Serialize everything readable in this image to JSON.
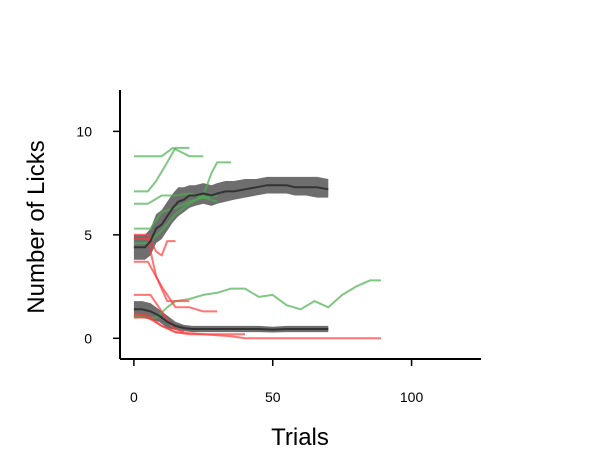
{
  "chart_data": {
    "type": "line",
    "title": "",
    "xlabel": "Trials",
    "ylabel": "Number of Licks",
    "xlim": [
      -5,
      125
    ],
    "ylim": [
      -1,
      12
    ],
    "xticks": [
      0,
      50,
      100
    ],
    "yticks": [
      0,
      5,
      10
    ],
    "grid": false,
    "colors": {
      "green": "#4caf50",
      "red": "#ff3b3b",
      "mean": "#333333",
      "band": "#555555"
    },
    "series": [
      {
        "group": "green",
        "x": [
          0,
          5,
          10,
          14,
          20,
          25
        ],
        "y": [
          8.8,
          8.8,
          8.8,
          9.2,
          8.8,
          8.8
        ]
      },
      {
        "group": "green",
        "x": [
          0,
          5,
          8,
          12,
          15,
          20
        ],
        "y": [
          7.1,
          7.1,
          7.6,
          8.5,
          9.2,
          9.2
        ]
      },
      {
        "group": "green",
        "x": [
          0,
          6,
          10,
          15,
          20,
          25,
          30
        ],
        "y": [
          5.3,
          5.3,
          6.1,
          6.3,
          6.6,
          6.8,
          6.6
        ]
      },
      {
        "group": "green",
        "x": [
          0,
          5,
          10,
          15,
          20,
          25,
          28,
          30,
          35
        ],
        "y": [
          4.6,
          4.6,
          5.2,
          6.0,
          6.5,
          6.9,
          8.0,
          8.5,
          8.5
        ]
      },
      {
        "group": "green",
        "x": [
          0,
          5,
          10,
          15,
          20,
          25,
          30
        ],
        "y": [
          6.5,
          6.5,
          6.9,
          6.9,
          7.0,
          6.8,
          6.9
        ]
      },
      {
        "group": "green",
        "x": [
          0,
          5,
          8,
          12,
          15,
          20,
          25,
          30,
          35,
          40,
          45,
          50,
          55,
          60,
          65,
          70,
          75,
          80,
          85,
          89
        ],
        "y": [
          1.1,
          1.0,
          1.0,
          1.5,
          1.8,
          1.9,
          2.1,
          2.2,
          2.4,
          2.4,
          2.0,
          2.1,
          1.6,
          1.4,
          1.8,
          1.5,
          2.1,
          2.5,
          2.8,
          2.8
        ]
      },
      {
        "group": "red",
        "x": [
          0,
          5,
          8,
          10,
          12,
          15
        ],
        "y": [
          5.0,
          5.0,
          4.2,
          4.0,
          4.7,
          4.7
        ]
      },
      {
        "group": "red",
        "x": [
          0,
          5,
          8,
          12,
          16,
          20
        ],
        "y": [
          4.8,
          4.8,
          3.0,
          1.8,
          1.8,
          1.8
        ]
      },
      {
        "group": "red",
        "x": [
          0,
          5,
          10,
          15,
          20,
          25,
          30
        ],
        "y": [
          3.7,
          3.7,
          2.5,
          1.5,
          1.5,
          1.3,
          1.3
        ]
      },
      {
        "group": "red",
        "x": [
          0,
          6,
          10,
          14,
          18
        ],
        "y": [
          2.1,
          2.1,
          1.3,
          0.5,
          0.3
        ]
      },
      {
        "group": "red",
        "x": [
          0,
          5,
          10,
          15,
          20,
          30,
          40
        ],
        "y": [
          1.2,
          1.1,
          0.6,
          0.3,
          0.2,
          0.2,
          0.2
        ]
      },
      {
        "group": "red",
        "x": [
          0,
          5,
          10,
          15,
          25,
          35,
          40,
          50,
          60,
          70,
          80,
          89
        ],
        "y": [
          1.0,
          1.0,
          0.6,
          0.3,
          0.2,
          0.1,
          0.0,
          0.0,
          0.0,
          0.0,
          0.0,
          0.0
        ]
      }
    ],
    "means": [
      {
        "x": [
          0,
          2,
          4,
          6,
          8,
          10,
          12,
          14,
          16,
          18,
          20,
          22,
          25,
          28,
          30,
          33,
          36,
          40,
          44,
          48,
          52,
          55,
          58,
          62,
          66,
          70
        ],
        "y": [
          4.4,
          4.4,
          4.4,
          4.7,
          5.3,
          5.5,
          5.9,
          6.3,
          6.6,
          6.7,
          6.9,
          6.9,
          7.0,
          6.9,
          7.0,
          7.1,
          7.1,
          7.2,
          7.3,
          7.4,
          7.4,
          7.4,
          7.3,
          7.3,
          7.3,
          7.2
        ],
        "lower": [
          3.8,
          3.8,
          3.8,
          4.0,
          4.6,
          4.8,
          5.2,
          5.6,
          5.9,
          6.1,
          6.3,
          6.4,
          6.5,
          6.4,
          6.5,
          6.6,
          6.7,
          6.8,
          6.9,
          7.0,
          7.0,
          7.0,
          6.9,
          6.9,
          6.8,
          6.8
        ],
        "upper": [
          5.0,
          5.0,
          5.0,
          5.3,
          6.0,
          6.2,
          6.6,
          7.0,
          7.3,
          7.3,
          7.4,
          7.4,
          7.5,
          7.4,
          7.5,
          7.6,
          7.6,
          7.7,
          7.7,
          7.8,
          7.8,
          7.8,
          7.8,
          7.8,
          7.8,
          7.7
        ]
      },
      {
        "x": [
          0,
          3,
          6,
          9,
          12,
          15,
          18,
          21,
          25,
          30,
          35,
          40,
          45,
          50,
          55,
          60,
          65,
          70
        ],
        "y": [
          1.4,
          1.4,
          1.3,
          1.1,
          0.8,
          0.6,
          0.5,
          0.45,
          0.45,
          0.45,
          0.45,
          0.45,
          0.45,
          0.42,
          0.45,
          0.45,
          0.45,
          0.45
        ],
        "lower": [
          1.0,
          1.0,
          0.9,
          0.8,
          0.5,
          0.4,
          0.35,
          0.3,
          0.3,
          0.3,
          0.3,
          0.3,
          0.3,
          0.28,
          0.3,
          0.3,
          0.3,
          0.3
        ],
        "upper": [
          1.8,
          1.8,
          1.7,
          1.4,
          1.1,
          0.8,
          0.65,
          0.6,
          0.6,
          0.6,
          0.6,
          0.6,
          0.6,
          0.56,
          0.6,
          0.6,
          0.6,
          0.6
        ]
      }
    ]
  }
}
